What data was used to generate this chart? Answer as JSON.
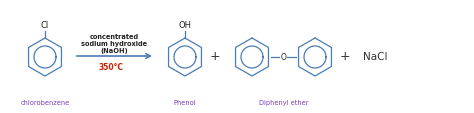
{
  "bg_color": "#ffffff",
  "ring_color": "#4a7cb5",
  "label_color": "#7b3db5",
  "nacl_color": "#333333",
  "arrow_color": "#4a7cb5",
  "temp_color": "#cc2200",
  "reaction_text_color": "#222222",
  "reagent_line1": "concentrated",
  "reagent_line2": "sodium hydroxide",
  "reagent_line3": "(NaOH)",
  "temp_text": "350°C",
  "label_chlorobenzene": "chlorobenzene",
  "label_phenol": "Phenol",
  "label_diphenyl": "Diphenyl ether",
  "label_nacl": "NaCl",
  "cl_label": "Cl",
  "oh_label": "OH",
  "o_label": "O",
  "plus_color": "#333333",
  "figw": 4.74,
  "figh": 1.14,
  "dpi": 100
}
